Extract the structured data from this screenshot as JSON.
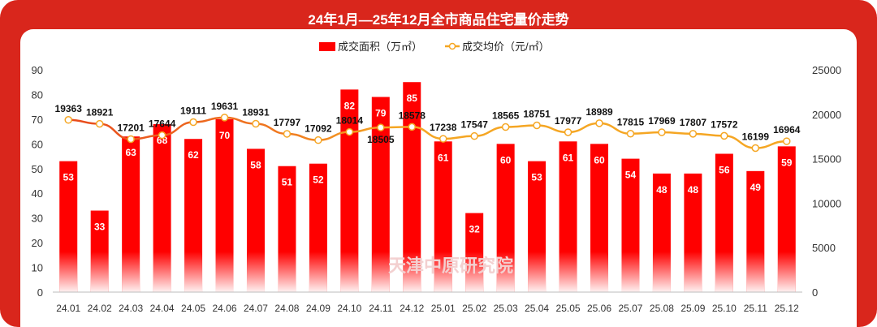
{
  "chart_data": {
    "type": "bar+line",
    "title": "24年1月—25年12月全市商品住宅量价走势",
    "categories": [
      "24.01",
      "24.02",
      "24.03",
      "24.04",
      "24.05",
      "24.06",
      "24.07",
      "24.08",
      "24.09",
      "24.10",
      "24.11",
      "24.12",
      "25.01",
      "25.02",
      "25.03",
      "25.04",
      "25.05",
      "25.06",
      "25.07",
      "25.08",
      "25.09",
      "25.10",
      "25.11",
      "25.12"
    ],
    "series": [
      {
        "name": "成交面积（万㎡）",
        "type": "bar",
        "axis": "left",
        "color": "#ff0000",
        "values": [
          53,
          33,
          63,
          68,
          62,
          70,
          58,
          51,
          52,
          82,
          79,
          85,
          61,
          32,
          60,
          53,
          61,
          60,
          54,
          48,
          48,
          56,
          49,
          59
        ]
      },
      {
        "name": "成交均价（元/㎡）",
        "type": "line",
        "axis": "right",
        "color": "#f5a623",
        "values": [
          19363,
          18921,
          17201,
          17644,
          19111,
          19631,
          18931,
          17797,
          17092,
          18014,
          18505,
          18578,
          17238,
          17547,
          18565,
          18751,
          17977,
          18989,
          17815,
          17969,
          17807,
          17572,
          16199,
          16964
        ]
      }
    ],
    "ylim_left": [
      0,
      90
    ],
    "yticks_left": [
      0,
      10,
      20,
      30,
      40,
      50,
      60,
      70,
      80,
      90
    ],
    "ylim_right": [
      0,
      25000
    ],
    "yticks_right": [
      0,
      5000,
      10000,
      15000,
      20000,
      25000
    ],
    "legend": "top-center",
    "grid": false,
    "watermark": "天津中原研究院"
  }
}
